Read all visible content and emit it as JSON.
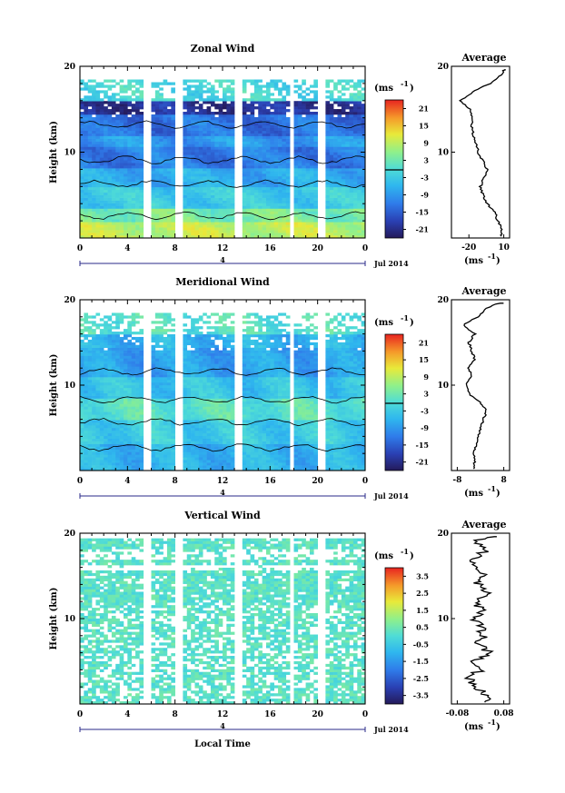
{
  "footer": {
    "xlabel": "Local Time"
  },
  "chart_data": [
    {
      "type": "heatmap",
      "title": "Zonal Wind",
      "ylabel": "Height (km)",
      "ylim": [
        0,
        20
      ],
      "y_ticks": [
        "10",
        "20"
      ],
      "x_ticks": [
        "0",
        "4",
        "8",
        "12",
        "16",
        "20",
        "0"
      ],
      "xlim": [
        0,
        24
      ],
      "date_label": "4",
      "month_label": "Jul 2014",
      "colorbar": {
        "unit": "(ms",
        "unit_exp": "-1",
        "ticks": [
          "21",
          "15",
          "9",
          "3",
          "-3",
          "-9",
          "-15",
          "-21"
        ],
        "range": [
          -24,
          24
        ]
      },
      "average": {
        "title": "Average",
        "x_ticks": [
          "-20",
          "10"
        ],
        "xlim": [
          -35,
          15
        ],
        "unit": "(ms",
        "unit_exp": "-1",
        "y_ticks": [
          "10",
          "20"
        ],
        "height": [
          1,
          2,
          3,
          4,
          5,
          6,
          7,
          8,
          9,
          10,
          11,
          12,
          13,
          14,
          15,
          16,
          17,
          18,
          19,
          20
        ],
        "values": [
          8,
          5,
          2,
          -4,
          -8,
          -10,
          -7,
          -4,
          -8,
          -12,
          -14,
          -16,
          -18,
          -17,
          -19,
          -27,
          -17,
          -2,
          8,
          12
        ]
      }
    },
    {
      "type": "heatmap",
      "title": "Meridional Wind",
      "ylabel": "Height (km)",
      "ylim": [
        0,
        20
      ],
      "y_ticks": [
        "10",
        "20"
      ],
      "x_ticks": [
        "0",
        "4",
        "8",
        "12",
        "16",
        "20",
        "0"
      ],
      "xlim": [
        0,
        24
      ],
      "date_label": "4",
      "month_label": "Jul 2014",
      "colorbar": {
        "unit": "(ms",
        "unit_exp": "-1",
        "ticks": [
          "21",
          "15",
          "9",
          "3",
          "-3",
          "-9",
          "-15",
          "-21"
        ],
        "range": [
          -24,
          24
        ]
      },
      "average": {
        "title": "Average",
        "x_ticks": [
          "-8",
          "8"
        ],
        "xlim": [
          -10,
          10
        ],
        "unit": "(ms",
        "unit_exp": "-1",
        "y_ticks": [
          "10",
          "20"
        ],
        "height": [
          1,
          2,
          3,
          4,
          5,
          6,
          7,
          8,
          9,
          10,
          11,
          12,
          13,
          14,
          15,
          16,
          17,
          18,
          19,
          20
        ],
        "values": [
          -2,
          -2.5,
          -1.5,
          -1,
          0,
          1,
          2,
          0,
          -4,
          -5,
          -3,
          -4,
          -2,
          -3,
          -4,
          -2,
          -6,
          -1,
          2,
          9
        ]
      }
    },
    {
      "type": "heatmap",
      "title": "Vertical Wind",
      "ylabel": "Height (km)",
      "ylim": [
        0,
        20
      ],
      "y_ticks": [
        "10",
        "20"
      ],
      "x_ticks": [
        "0",
        "4",
        "8",
        "12",
        "16",
        "20",
        "0"
      ],
      "xlim": [
        0,
        24
      ],
      "date_label": "4",
      "month_label": "Jul 2014",
      "colorbar": {
        "unit": "(ms",
        "unit_exp": "-1",
        "ticks": [
          "3.5",
          "2.5",
          "1.5",
          "0.5",
          "-0.5",
          "-1.5",
          "-2.5",
          "-3.5"
        ],
        "range": [
          -4,
          4
        ]
      },
      "average": {
        "title": "Average",
        "x_ticks": [
          "-0.08",
          "0.08"
        ],
        "xlim": [
          -0.1,
          0.1
        ],
        "unit": "(ms",
        "unit_exp": "-1",
        "y_ticks": [
          "10",
          "20"
        ],
        "height": [
          1,
          2,
          3,
          4,
          5,
          6,
          7,
          8,
          9,
          10,
          11,
          12,
          13,
          14,
          15,
          16,
          17,
          18,
          19,
          20
        ],
        "values": [
          0.03,
          -0.03,
          -0.04,
          0.0,
          -0.02,
          0.03,
          -0.01,
          0.01,
          0.0,
          -0.02,
          0.0,
          -0.01,
          0.02,
          -0.01,
          0.01,
          0.0,
          -0.03,
          0.02,
          -0.02,
          0.06
        ]
      }
    }
  ]
}
